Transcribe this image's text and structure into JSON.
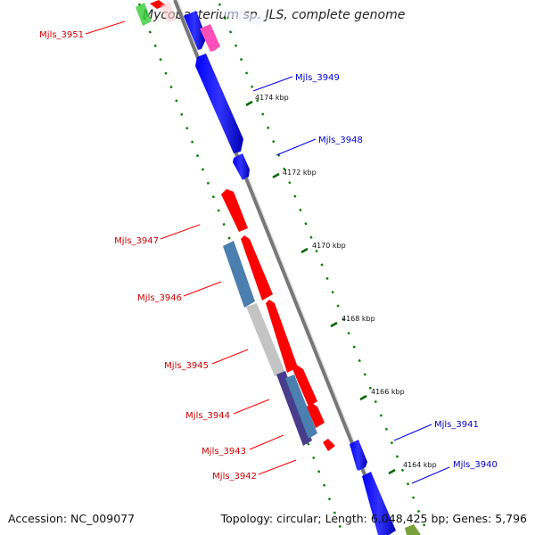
{
  "title": "Mycobacterium sp. JLS, complete genome",
  "footer": {
    "accession": "Accession: NC_009077",
    "topology": "Topology: circular; Length: 6,048,425 bp; Genes: 5,796"
  },
  "colors": {
    "forward": "#0000ee",
    "reverse": "#ff0000",
    "forward_label": "#0000cc",
    "reverse_label": "#cc0000",
    "steel_blue": "#4682b4",
    "dark_slate": "#483d8b",
    "gray": "#c8c8c8",
    "pink": "#ff66cc",
    "green": "#6b8e23",
    "tick_green": "#008000",
    "backbone": "#888888"
  },
  "tick_labels": [
    "4174 kbp",
    "4172 kbp",
    "4170 kbp",
    "4168 kbp",
    "4166 kbp",
    "4164 kbp"
  ],
  "gene_labels_left": [
    "Mjls_3951",
    "Mjls_3947",
    "Mjls_3946",
    "Mjls_3945",
    "Mjls_3944",
    "Mjls_3943",
    "Mjls_3942"
  ],
  "gene_labels_right": [
    "Mjls_3949",
    "Mjls_3948",
    "Mjls_3941",
    "Mjls_3940"
  ]
}
